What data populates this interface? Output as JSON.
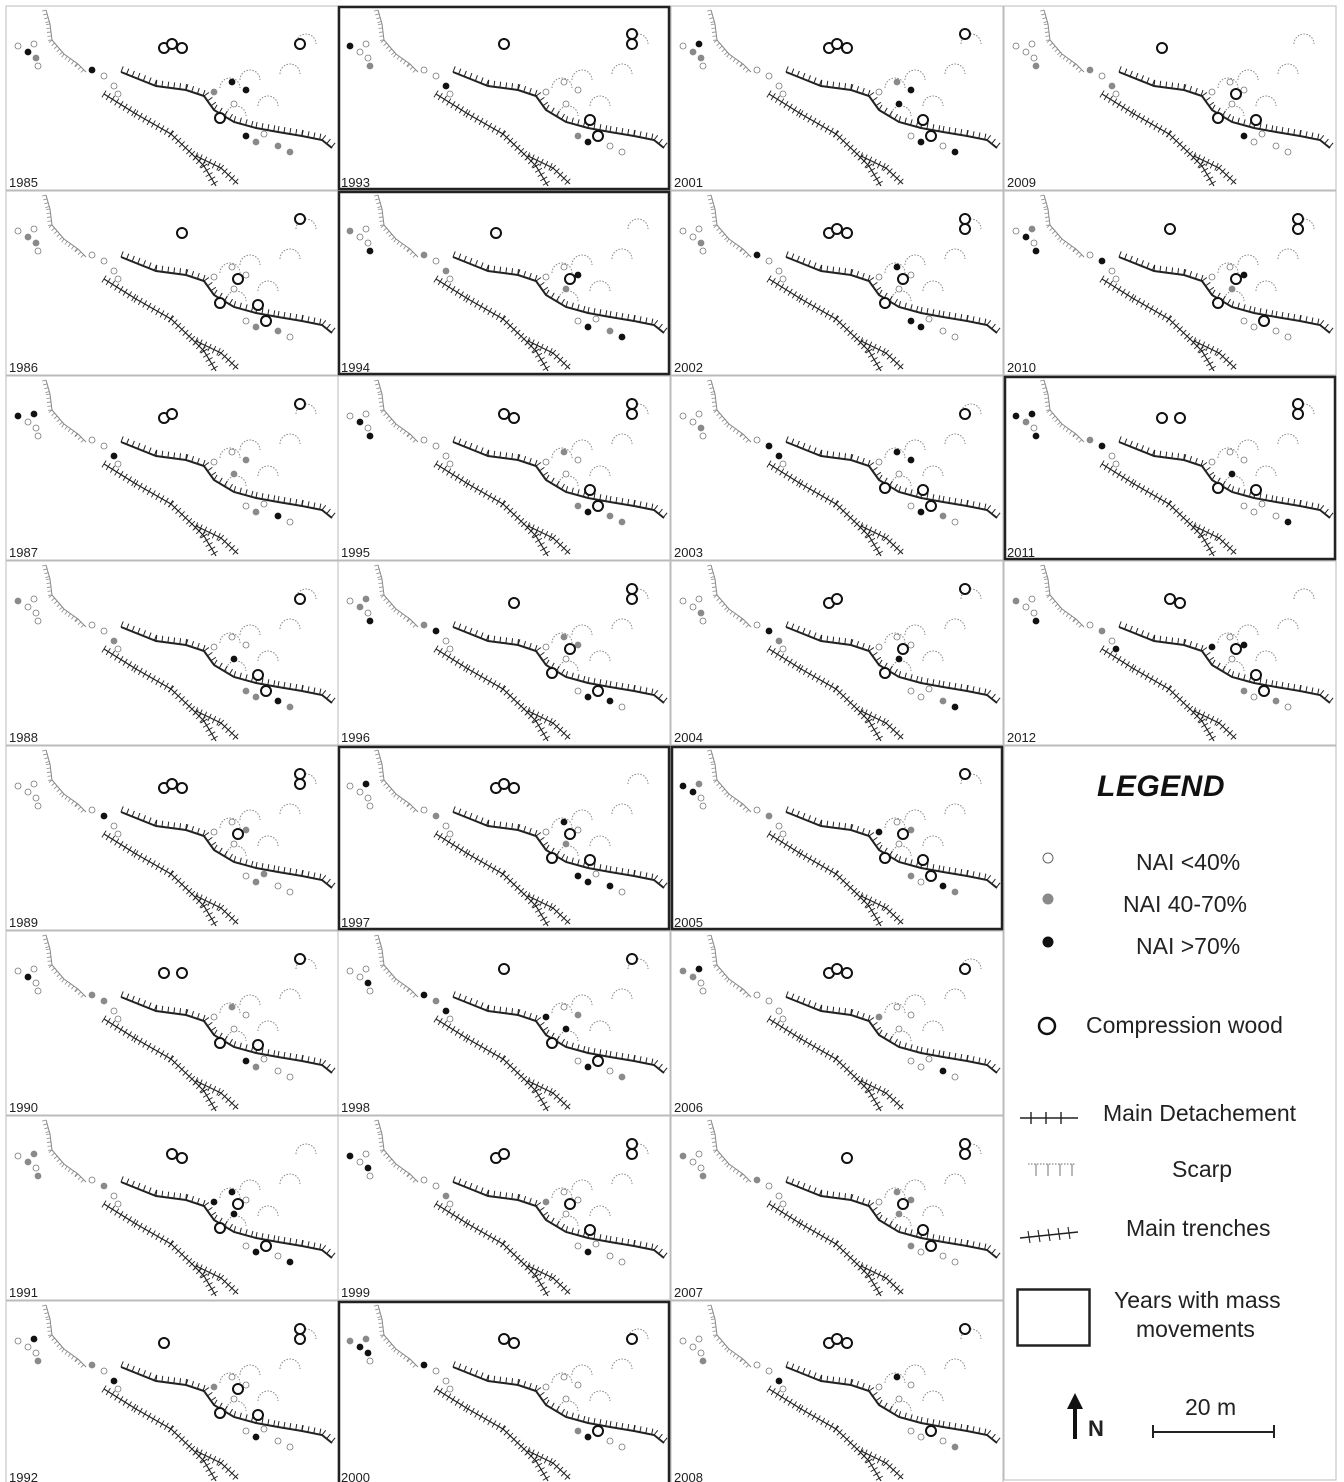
{
  "years": [
    "1985",
    "1986",
    "1987",
    "1988",
    "1989",
    "1990",
    "1991",
    "1992",
    "1993",
    "1994",
    "1995",
    "1996",
    "1997",
    "1998",
    "1999",
    "2000",
    "2001",
    "2002",
    "2003",
    "2004",
    "2005",
    "2006",
    "2007",
    "2008",
    "2009",
    "2010",
    "2011",
    "2012"
  ],
  "mass_movement_years": [
    "1993",
    "1994",
    "1997",
    "2000",
    "2005",
    "2011"
  ],
  "legend": {
    "title": "LEGEND",
    "nai_low": "NAI <40%",
    "nai_mid": "NAI 40-70%",
    "nai_high": "NAI >70%",
    "compression": "Compression wood",
    "detachment": "Main Detachement",
    "scarp": "Scarp",
    "trenches": "Main trenches",
    "mass_movements_line1": "Years with mass",
    "mass_movements_line2": "movements",
    "north": "N",
    "scale": "20 m"
  },
  "colors": {
    "nai_low": "#ffffff",
    "nai_mid": "#8a8a8a",
    "nai_high": "#111111",
    "line": "#222222",
    "scarp": "#888888"
  }
}
